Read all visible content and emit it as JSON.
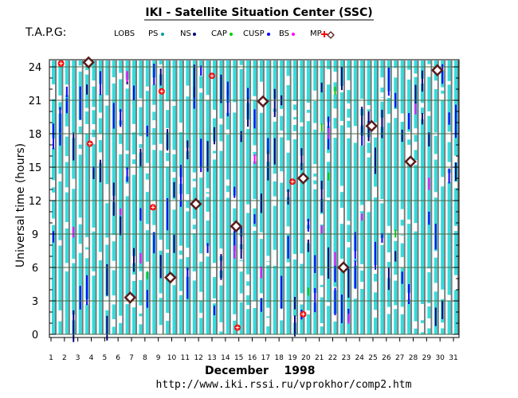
{
  "header": {
    "title": "IKI - Satellite Situation Center (SSC)",
    "station": "T.A.P.G:"
  },
  "legend": [
    {
      "label": "LOBS",
      "symbol": "",
      "color": "#000000"
    },
    {
      "label": "PS",
      "symbol": "dot",
      "color": "#00a0a0"
    },
    {
      "label": "NS",
      "symbol": "dot",
      "color": "#000080"
    },
    {
      "label": "CAP",
      "symbol": "dot",
      "color": "#00cc00"
    },
    {
      "label": "CUSP",
      "symbol": "dot",
      "color": "#0000ff"
    },
    {
      "label": "BS",
      "symbol": "dot",
      "color": "#ff00ff"
    },
    {
      "label": "MP",
      "symbol": "plus",
      "color": "#ff0000"
    },
    {
      "label": "",
      "symbol": "diamond",
      "color": "#5a1a1a"
    }
  ],
  "footer": {
    "month": "December",
    "year": "1998",
    "url": "http://www.iki.rssi.ru/vprokhor/comp2.htm"
  },
  "colors": {
    "ps": "#33dddd",
    "ns": "#000080",
    "cap": "#00cc00",
    "cusp": "#0000ff",
    "bs": "#ff00ff",
    "gray": "#7a7a7a",
    "grid": "#4a6a4a",
    "bs_marker": "#ff0000",
    "mp_marker": "#5a1a1a"
  },
  "chart_data": {
    "type": "scatter",
    "title": "IKI - Satellite Situation Center (SSC)",
    "xlabel": "December 1998",
    "ylabel": "Universal time  (hours)",
    "xlim": [
      1,
      31
    ],
    "ylim": [
      0,
      24
    ],
    "xticks": [
      "1",
      "2",
      "3",
      "4",
      "5",
      "6",
      "7",
      "8",
      "9",
      "10",
      "11",
      "12",
      "13",
      "14",
      "15",
      "16",
      "17",
      "18",
      "19",
      "20",
      "21",
      "22",
      "23",
      "24",
      "25",
      "26",
      "27",
      "28",
      "29",
      "30",
      "31"
    ],
    "yticks": [
      "0",
      "3",
      "6",
      "9",
      "12",
      "15",
      "18",
      "21",
      "24"
    ],
    "bs_crossings": [
      {
        "day": 1.75,
        "hour": 24.3
      },
      {
        "day": 3.9,
        "hour": 17.1
      },
      {
        "day": 8.6,
        "hour": 11.4
      },
      {
        "day": 9.25,
        "hour": 21.8
      },
      {
        "day": 13.0,
        "hour": 23.2
      },
      {
        "day": 14.9,
        "hour": 0.6
      },
      {
        "day": 19.0,
        "hour": 13.7
      },
      {
        "day": 19.8,
        "hour": 1.8
      }
    ],
    "mp_crossings": [
      {
        "day": 3.8,
        "hour": 24.4
      },
      {
        "day": 6.9,
        "hour": 3.3
      },
      {
        "day": 9.9,
        "hour": 5.1
      },
      {
        "day": 11.8,
        "hour": 11.7
      },
      {
        "day": 14.8,
        "hour": 9.7
      },
      {
        "day": 16.8,
        "hour": 20.9
      },
      {
        "day": 19.8,
        "hour": 14.0
      },
      {
        "day": 22.8,
        "hour": 6.0
      },
      {
        "day": 24.9,
        "hour": 18.7
      },
      {
        "day": 27.8,
        "hour": 15.5
      },
      {
        "day": 29.8,
        "hour": 23.7
      }
    ]
  }
}
